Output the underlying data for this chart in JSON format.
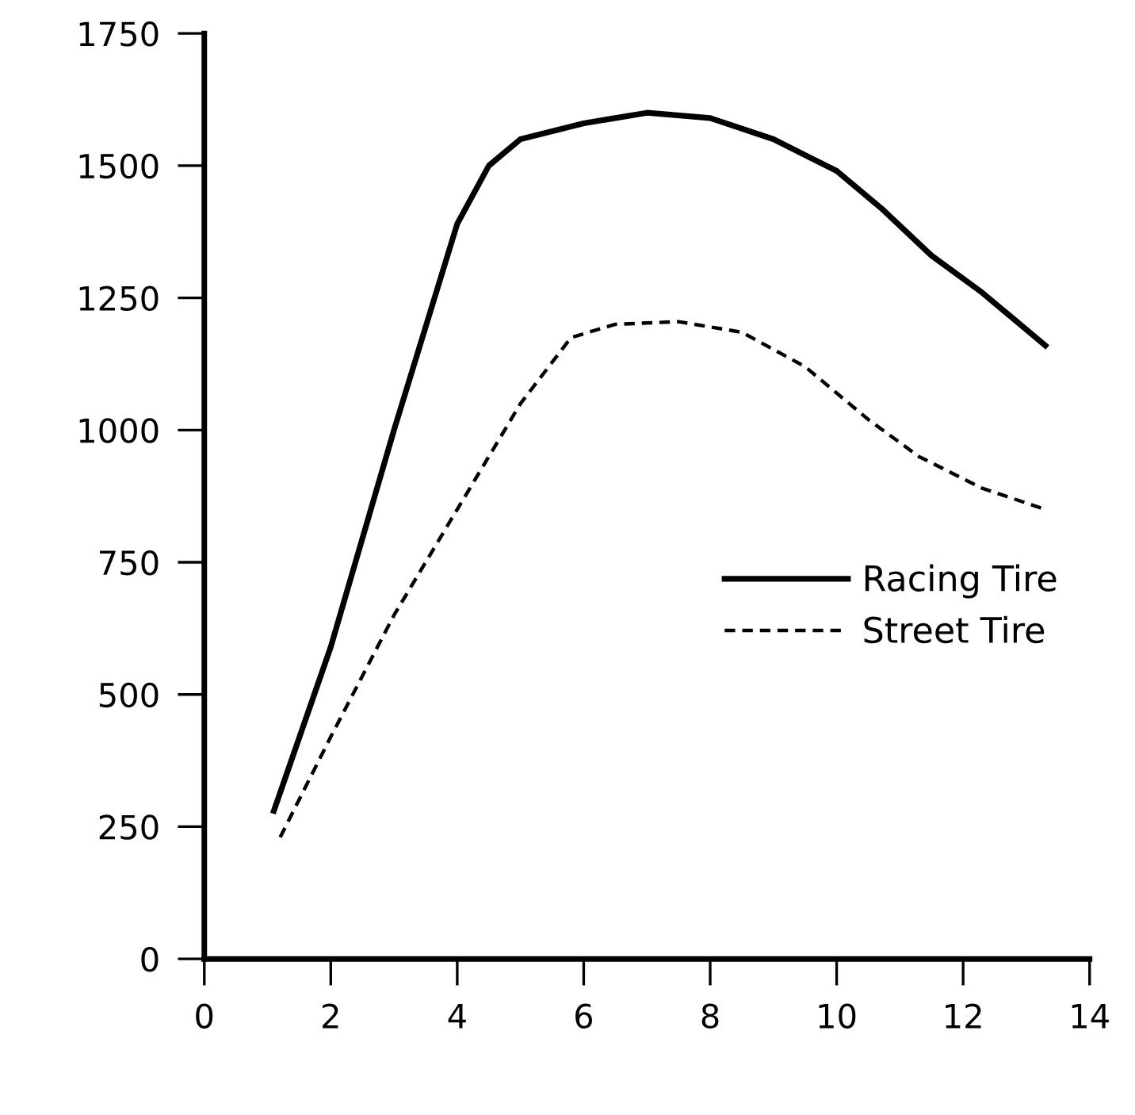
{
  "chart_data": {
    "type": "line",
    "xlim": [
      0,
      14
    ],
    "ylim": [
      0,
      1750
    ],
    "xticks": [
      0,
      2,
      4,
      6,
      8,
      10,
      12,
      14
    ],
    "yticks": [
      0,
      250,
      500,
      750,
      1000,
      1250,
      1500,
      1750
    ],
    "grid": false,
    "legend": "right",
    "marker": "none",
    "series": [
      {
        "name": "Racing Tire",
        "color": "#000000",
        "line_style": "solid",
        "x": [
          1.1,
          2,
          3,
          4,
          4.5,
          5,
          6,
          7,
          8,
          9,
          10,
          10.7,
          11.5,
          12.3,
          13.3
        ],
        "values": [
          280,
          590,
          1000,
          1390,
          1500,
          1550,
          1580,
          1600,
          1590,
          1550,
          1490,
          1420,
          1330,
          1260,
          1160
        ]
      },
      {
        "name": "Street Tire",
        "color": "#000000",
        "line_style": "dashed",
        "x": [
          1.2,
          2,
          3,
          4,
          5,
          5.8,
          6.5,
          7.5,
          8.5,
          9.5,
          10.5,
          11.3,
          12.3,
          13.3
        ],
        "values": [
          230,
          420,
          650,
          850,
          1050,
          1175,
          1200,
          1205,
          1185,
          1120,
          1020,
          950,
          890,
          850
        ]
      }
    ]
  }
}
